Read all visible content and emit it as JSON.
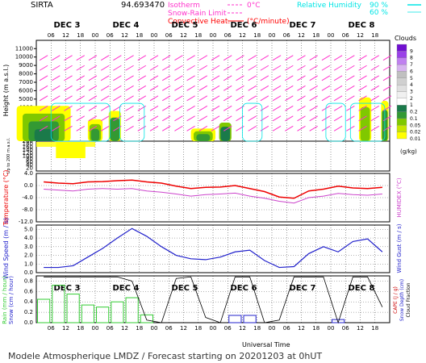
{
  "header": {
    "station": "SIRTA",
    "coords": "94.693470",
    "legend_left": [
      {
        "label": "Isotherm",
        "value": "0°C",
        "style": "dashed",
        "color": "#ff33cc"
      },
      {
        "label": "Snow-Rain Limit",
        "value": "",
        "style": "dashed",
        "color": "#ff33cc"
      },
      {
        "label": "Convective Heat.",
        "value": "(°C/minute)",
        "style": "solid",
        "color": "#ff0000"
      }
    ],
    "legend_right": [
      {
        "label": "Relative Humidity",
        "value": "90 %",
        "color": "#00e5e5"
      },
      {
        "label": "",
        "value": "60 %",
        "color": "#00e5e5"
      }
    ]
  },
  "footer": {
    "title": "Modele Atmospherique LMDZ / Forecast starting on 20201203 at 0hUT",
    "xlabel": "Universal Time"
  },
  "colors": {
    "wind_arrow": "#ff33cc",
    "rh": "#00e5e5",
    "temperature": "#ee0000",
    "humidex": "#cc44cc",
    "wind_speed": "#2222cc",
    "rain": "#33cc33",
    "snow": "#2222cc",
    "cape": "#000000"
  },
  "chart_data": [
    {
      "type": "heatmap",
      "name": "clouds",
      "days": [
        "DEC 3",
        "DEC 4",
        "DEC 5",
        "DEC 6",
        "DEC 7",
        "DEC 8"
      ],
      "hour_ticks": [
        "06",
        "12",
        "18",
        "00"
      ],
      "ylabel": "Height (m a.s.l.)",
      "ylabel_low": "Up to 200 m a.s.l.",
      "y_ticks_upper": [
        1000,
        2000,
        3000,
        4000,
        5000,
        6000,
        7000,
        8000,
        9000,
        10000,
        11000
      ],
      "y_ticks_lower": [
        20,
        40,
        60,
        80,
        100,
        120,
        140,
        160,
        180,
        200
      ],
      "colorbar": {
        "title": "Clouds",
        "unit": "(g/kg)",
        "levels": [
          "0.01",
          "0.02",
          "0.05",
          "0.1",
          "0.2",
          "1",
          "2",
          "3",
          "4",
          "5",
          "6",
          "7",
          "8",
          "9"
        ],
        "colors": [
          "#ffff00",
          "#c8e600",
          "#80c800",
          "#339933",
          "#1a7a4a",
          "#ffffff",
          "#f0f0f0",
          "#e0e0e0",
          "#d0d0d0",
          "#c0c0c0",
          "#d8b4f0",
          "#c080f0",
          "#9a40e8",
          "#7010d0"
        ]
      }
    },
    {
      "type": "line",
      "name": "temperature",
      "ylabel": "Temperature (°C)",
      "ylabel_right": "HUMIDEX (°C)",
      "y_ticks": [
        4.0,
        0.0,
        -4.0,
        -8.0,
        -12.0
      ],
      "ylim": [
        -12,
        4
      ],
      "x": [
        0,
        6,
        12,
        18,
        24,
        30,
        36,
        42,
        48,
        54,
        60,
        66,
        72,
        78,
        84,
        90,
        96,
        102,
        108,
        114,
        120,
        126,
        132,
        138
      ],
      "series": [
        {
          "name": "Temperature",
          "values": [
            1.2,
            0.8,
            0.6,
            1.2,
            1.3,
            1.6,
            1.8,
            1.2,
            0.8,
            -0.2,
            -1.0,
            -0.6,
            -0.5,
            0.0,
            -1.0,
            -2.0,
            -3.8,
            -4.2,
            -1.8,
            -1.2,
            -0.2,
            -0.8,
            -1.0,
            -0.6
          ]
        },
        {
          "name": "Humidex",
          "values": [
            -1.2,
            -1.5,
            -1.8,
            -1.2,
            -1.0,
            -1.2,
            -1.0,
            -1.8,
            -2.2,
            -2.8,
            -3.5,
            -3.0,
            -2.8,
            -2.5,
            -3.5,
            -4.2,
            -5.2,
            -5.8,
            -4.0,
            -3.5,
            -2.6,
            -3.0,
            -3.2,
            -2.8
          ]
        }
      ]
    },
    {
      "type": "line",
      "name": "wind",
      "ylabel": "Wind Speed (m / s)",
      "ylabel_right": "Wind Gust (m / s)",
      "y_ticks": [
        0.0,
        1.0,
        2.0,
        3.0,
        4.0,
        5.0
      ],
      "ylim": [
        0,
        5.5
      ],
      "x": [
        0,
        6,
        12,
        18,
        24,
        30,
        36,
        42,
        48,
        54,
        60,
        66,
        72,
        78,
        84,
        90,
        96,
        102,
        108,
        114,
        120,
        126,
        132,
        138
      ],
      "series": [
        {
          "name": "Wind Speed",
          "values": [
            0.6,
            0.6,
            0.8,
            1.8,
            2.8,
            4.0,
            5.1,
            4.2,
            3.0,
            2.0,
            1.6,
            1.5,
            1.8,
            2.4,
            2.6,
            1.4,
            0.6,
            0.7,
            2.2,
            3.0,
            2.4,
            3.6,
            3.9,
            2.4
          ]
        }
      ]
    },
    {
      "type": "bar",
      "name": "precipitation",
      "ylabel": "Rain (mm / hour)",
      "ylabel2": "Snow (cm / hour)",
      "ylabel_right": "CAPE (J / g)",
      "ylabel_right2": "Snow Depth (cm)",
      "ylabel_right3": "Cloud Fraction",
      "y_ticks": [
        0.0,
        0.2,
        0.4,
        0.6,
        0.8
      ],
      "ylim": [
        0,
        0.9
      ],
      "x": [
        0,
        6,
        12,
        18,
        24,
        30,
        36,
        42,
        48,
        54,
        60,
        66,
        72,
        78,
        84,
        90,
        96,
        102,
        108,
        114,
        120,
        126,
        132,
        138
      ],
      "series": [
        {
          "name": "Rain",
          "values": [
            0.45,
            0.72,
            0.55,
            0.34,
            0.3,
            0.4,
            0.48,
            0.15,
            0.0,
            0.0,
            0.0,
            0.0,
            0.0,
            0.0,
            0.0,
            0.0,
            0.0,
            0.0,
            0.0,
            0.0,
            0.0,
            0.0,
            0.0,
            0.0
          ]
        },
        {
          "name": "Snow",
          "values": [
            0.0,
            0.0,
            0.0,
            0.0,
            0.0,
            0.0,
            0.0,
            0.0,
            0.0,
            0.0,
            0.0,
            0.0,
            0.0,
            0.14,
            0.14,
            0.0,
            0.0,
            0.0,
            0.0,
            0.0,
            0.06,
            0.0,
            0.0,
            0.0
          ]
        },
        {
          "name": "Cloud Fraction",
          "values": [
            0.88,
            0.88,
            0.88,
            0.88,
            0.88,
            0.88,
            0.8,
            0.05,
            0.0,
            0.85,
            0.88,
            0.1,
            0.0,
            0.88,
            0.88,
            0.0,
            0.05,
            0.88,
            0.88,
            0.88,
            0.0,
            0.88,
            0.88,
            0.3
          ]
        }
      ]
    }
  ]
}
